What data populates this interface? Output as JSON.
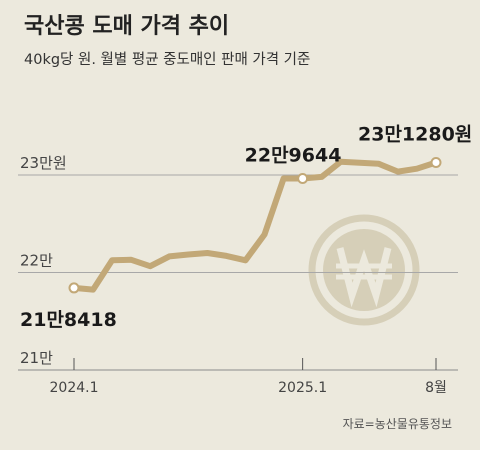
{
  "header": {
    "title": "국산콩 도매 가격 추이",
    "subtitle": "40kg당 원. 월별 평균 중도매인 판매 가격 기준"
  },
  "source": "자료=농산물유통정보",
  "watermark_icon": "won-coin-icon",
  "colors": {
    "background": "#ece9dd",
    "line": "#c2a877",
    "gridline": "#a8a8a8",
    "watermark": "#d6cfb8"
  },
  "chart_data": {
    "type": "line",
    "title": "국산콩 도매 가격 추이",
    "subtitle": "40kg당 원. 월별 평균 중도매인 판매 가격 기준",
    "ylim": [
      210000,
      238000
    ],
    "yticks": [
      {
        "value": 210000,
        "label": "21만"
      },
      {
        "value": 220000,
        "label": "22만"
      },
      {
        "value": 230000,
        "label": "23만원"
      }
    ],
    "xticks": [
      {
        "index": 0,
        "label": "2024.1"
      },
      {
        "index": 12,
        "label": "2025.1"
      },
      {
        "index": 19,
        "label": "8월"
      }
    ],
    "grid": true,
    "x": [
      "2024-01",
      "2024-02",
      "2024-03",
      "2024-04",
      "2024-05",
      "2024-06",
      "2024-07",
      "2024-08",
      "2024-09",
      "2024-10",
      "2024-11",
      "2024-12",
      "2025-01",
      "2025-02",
      "2025-03",
      "2025-04",
      "2025-05",
      "2025-06",
      "2025-07",
      "2025-08"
    ],
    "series": [
      {
        "values": [
          218418,
          218250,
          221250,
          221300,
          220650,
          221650,
          221850,
          222000,
          221700,
          221250,
          223900,
          229644,
          229644,
          229800,
          231350,
          231250,
          231150,
          230350,
          230650,
          231280
        ]
      }
    ],
    "annotations": [
      {
        "index": 0,
        "label": "21만8418"
      },
      {
        "index": 12,
        "label": "22만9644"
      },
      {
        "index": 19,
        "label": "23만1280원"
      }
    ]
  }
}
